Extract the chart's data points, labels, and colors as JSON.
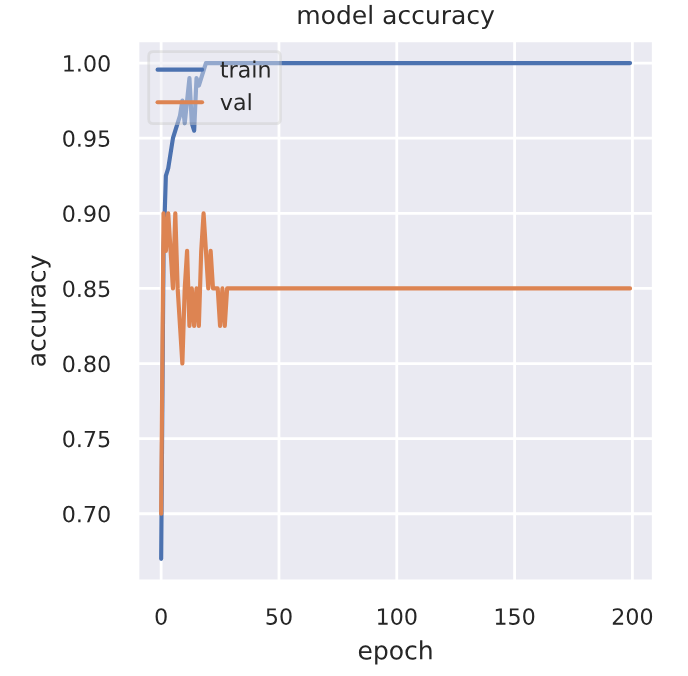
{
  "chart_data": {
    "type": "line",
    "title": "model accuracy",
    "xlabel": "epoch",
    "ylabel": "accuracy",
    "xlim": [
      -10,
      209
    ],
    "ylim": [
      0.655,
      1.015
    ],
    "xticks": [
      0,
      50,
      100,
      150,
      200
    ],
    "yticks": [
      {
        "value": 0.7,
        "label": "0.70"
      },
      {
        "value": 0.75,
        "label": "0.75"
      },
      {
        "value": 0.8,
        "label": "0.80"
      },
      {
        "value": 0.85,
        "label": "0.85"
      },
      {
        "value": 0.9,
        "label": "0.90"
      },
      {
        "value": 0.95,
        "label": "0.95"
      },
      {
        "value": 1.0,
        "label": "1.00"
      }
    ],
    "grid": true,
    "legend": "top left",
    "series": [
      {
        "name": "train",
        "color": "#4c72b0",
        "x": [
          0,
          1,
          2,
          3,
          4,
          5,
          6,
          7,
          8,
          9,
          10,
          11,
          12,
          13,
          14,
          15,
          16,
          17,
          18,
          19,
          199
        ],
        "values": [
          0.67,
          0.875,
          0.925,
          0.93,
          0.94,
          0.95,
          0.955,
          0.96,
          0.965,
          0.975,
          0.96,
          0.975,
          0.99,
          0.96,
          0.955,
          0.99,
          0.985,
          0.99,
          0.995,
          1.0,
          1.0
        ]
      },
      {
        "name": "val",
        "color": "#dd8452",
        "x": [
          0,
          1,
          2,
          3,
          4,
          5,
          6,
          7,
          8,
          9,
          10,
          11,
          12,
          13,
          14,
          15,
          16,
          17,
          18,
          19,
          20,
          21,
          22,
          23,
          24,
          25,
          26,
          27,
          28,
          29,
          199
        ],
        "values": [
          0.7,
          0.9,
          0.875,
          0.9,
          0.875,
          0.85,
          0.9,
          0.85,
          0.825,
          0.8,
          0.85,
          0.875,
          0.825,
          0.85,
          0.825,
          0.85,
          0.825,
          0.875,
          0.9,
          0.875,
          0.85,
          0.875,
          0.85,
          0.85,
          0.85,
          0.825,
          0.85,
          0.825,
          0.85,
          0.85,
          0.85
        ]
      }
    ]
  }
}
